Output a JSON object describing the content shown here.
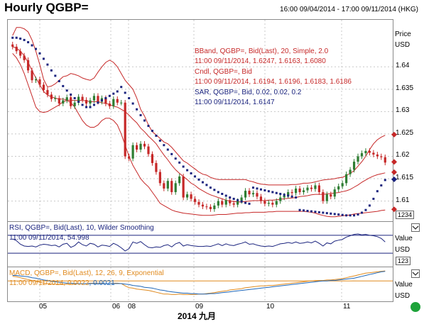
{
  "header": {
    "title": "Hourly QGBP=",
    "date_range": "16:00 09/04/2014 - 17:00 09/11/2014 (HKG)"
  },
  "colors": {
    "bband": "#c62828",
    "candle_up": "#2e7d32",
    "candle_down": "#c62828",
    "sar": "#1a237e",
    "rsi": "#1a237e",
    "macd": "#e08a1e",
    "signal": "#1e66b8",
    "grid": "#c8c8c8"
  },
  "main_pane": {
    "axis_title": "Price",
    "axis_unit": "USD",
    "overlays": [
      {
        "line1": "BBand, QGBP=, Bid(Last), 20, Simple, 2.0",
        "line2": "11:00 09/11/2014, 1.6247, 1.6163, 1.6080"
      },
      {
        "line1": "Cndl, QGBP=, Bid",
        "line2": "11:00 09/11/2014, 1.6194, 1.6196, 1.6183, 1.6186"
      },
      {
        "line1": "SAR, QGBP=, Bid, 0.02, 0.02, 0.2",
        "line2": "11:00 09/11/2014, 1.6147"
      }
    ],
    "scale_tag": "1234"
  },
  "rsi_pane": {
    "legend": "RSI, QGBP=, Bid(Last), 10, Wilder Smoothing",
    "value_line": "11:00 09/11/2014, 54.998",
    "axis_title": "Value",
    "axis_unit": "USD",
    "scale_tag": "123"
  },
  "macd_pane": {
    "legend": "MACD, QGBP=, Bid(Last), 12, 26, 9, Exponential",
    "value_date": "11:00 09/11/2014,",
    "macd_value": "0.0022",
    "signal_value": "0.0021",
    "axis_title": "Value",
    "axis_unit": "USD"
  },
  "chart_data": {
    "type": "candlestick",
    "title": "Hourly QGBP=",
    "xlabel": "2014 九月",
    "ylabel": "Price USD",
    "x_ticks": [
      "05",
      "06",
      "08",
      "09",
      "10",
      "11"
    ],
    "y_ticks": [
      1.61,
      1.615,
      1.62,
      1.625,
      1.63,
      1.635,
      1.64
    ],
    "ylim": [
      1.6055,
      1.6505
    ],
    "grid": true,
    "close_series": [
      1.6445,
      1.6435,
      1.6425,
      1.6415,
      1.6392,
      1.637,
      1.6372,
      1.636,
      1.6348,
      1.6338,
      1.6328,
      1.633,
      1.6318,
      1.6325,
      1.6332,
      1.6312,
      1.632,
      1.6333,
      1.6326,
      1.6318,
      1.6325,
      1.6335,
      1.6322,
      1.633,
      1.6318,
      1.6312,
      1.6328,
      1.632,
      1.632,
      1.62,
      1.6195,
      1.6225,
      1.6215,
      1.6228,
      1.6222,
      1.6205,
      1.6185,
      1.6165,
      1.614,
      1.6128,
      1.6145,
      1.612,
      1.614,
      1.6155,
      1.6108,
      1.6115,
      1.6105,
      1.6098,
      1.6092,
      1.6088,
      1.6087,
      1.6082,
      1.609,
      1.61,
      1.6092,
      1.6102,
      1.6095,
      1.6092,
      1.61,
      1.6108,
      1.6123,
      1.6115,
      1.6118,
      1.611,
      1.61,
      1.6094,
      1.6096,
      1.6092,
      1.61,
      1.6108,
      1.6112,
      1.612,
      1.6118,
      1.6128,
      1.612,
      1.6124,
      1.613,
      1.6127,
      1.6135,
      1.612,
      1.61,
      1.6115,
      1.611,
      1.6126,
      1.6133,
      1.614,
      1.616,
      1.617,
      1.6188,
      1.62,
      1.6207,
      1.6212,
      1.6208,
      1.6204,
      1.62,
      1.6198,
      1.6186
    ],
    "bband_upper": [
      1.647,
      1.6488,
      1.6488,
      1.6485,
      1.6478,
      1.646,
      1.6435,
      1.6405,
      1.6372,
      1.6355,
      1.6357,
      1.6362,
      1.637,
      1.6378,
      1.638,
      1.6385,
      1.6383,
      1.638,
      1.6375,
      1.6372,
      1.637,
      1.6375,
      1.6388,
      1.64,
      1.641,
      1.6415,
      1.641,
      1.64,
      1.6385,
      1.637,
      1.636,
      1.635,
      1.633,
      1.6305,
      1.629,
      1.627,
      1.6255,
      1.6248,
      1.624,
      1.6232,
      1.6228,
      1.622,
      1.621,
      1.62,
      1.619,
      1.6185,
      1.6178,
      1.6172,
      1.6165,
      1.616,
      1.6158,
      1.6153,
      1.615,
      1.6148,
      1.6148,
      1.6148,
      1.6148,
      1.6148,
      1.6148,
      1.6148,
      1.6148,
      1.6145,
      1.6143,
      1.614,
      1.6138,
      1.6137,
      1.6136,
      1.6136,
      1.6136,
      1.6136,
      1.6136,
      1.6136,
      1.6137,
      1.6137,
      1.6138,
      1.614,
      1.614,
      1.6141,
      1.6143,
      1.6145,
      1.6147,
      1.6148,
      1.6149,
      1.615,
      1.6152,
      1.6153,
      1.6157,
      1.6162,
      1.6168,
      1.6178,
      1.6188,
      1.62,
      1.6215,
      1.6228,
      1.6237,
      1.6243,
      1.6247
    ],
    "bband_middle": [
      1.6445,
      1.6442,
      1.6435,
      1.6425,
      1.641,
      1.6392,
      1.6375,
      1.636,
      1.6345,
      1.6337,
      1.6333,
      1.633,
      1.6328,
      1.6328,
      1.6326,
      1.6325,
      1.6325,
      1.6325,
      1.6325,
      1.6324,
      1.6322,
      1.6322,
      1.6322,
      1.632,
      1.6318,
      1.6316,
      1.6312,
      1.631,
      1.6305,
      1.63,
      1.6292,
      1.6283,
      1.6275,
      1.6263,
      1.6255,
      1.6245,
      1.6237,
      1.6228,
      1.6215,
      1.6203,
      1.6192,
      1.618,
      1.617,
      1.6162,
      1.6155,
      1.6148,
      1.614,
      1.6135,
      1.6128,
      1.6123,
      1.6118,
      1.6114,
      1.6111,
      1.6108,
      1.6105,
      1.6102,
      1.61,
      1.6099,
      1.6098,
      1.6098,
      1.6099,
      1.61,
      1.6101,
      1.6101,
      1.6101,
      1.6101,
      1.6102,
      1.6102,
      1.6103,
      1.6104,
      1.6105,
      1.6106,
      1.6107,
      1.6108,
      1.611,
      1.6111,
      1.6112,
      1.6114,
      1.6115,
      1.6115,
      1.6115,
      1.6116,
      1.6117,
      1.6118,
      1.6119,
      1.6121,
      1.6123,
      1.6126,
      1.6131,
      1.6136,
      1.6142,
      1.6147,
      1.6152,
      1.6156,
      1.6159,
      1.6161,
      1.6163
    ],
    "bband_lower": [
      1.643,
      1.642,
      1.6405,
      1.6385,
      1.636,
      1.6335,
      1.631,
      1.63,
      1.6298,
      1.63,
      1.6305,
      1.631,
      1.6315,
      1.6322,
      1.6325,
      1.632,
      1.631,
      1.6295,
      1.628,
      1.627,
      1.6265,
      1.6265,
      1.627,
      1.628,
      1.6285,
      1.6285,
      1.628,
      1.627,
      1.625,
      1.6225,
      1.62,
      1.618,
      1.6165,
      1.615,
      1.614,
      1.6132,
      1.612,
      1.6108,
      1.6095,
      1.609,
      1.6085,
      1.608,
      1.6077,
      1.6075,
      1.6073,
      1.6072,
      1.6071,
      1.607,
      1.6069,
      1.6068,
      1.6068,
      1.6068,
      1.6069,
      1.607,
      1.607,
      1.607,
      1.6071,
      1.6072,
      1.6073,
      1.6073,
      1.6074,
      1.6074,
      1.6075,
      1.6075,
      1.6075,
      1.6075,
      1.6076,
      1.6076,
      1.6077,
      1.6077,
      1.6077,
      1.6077,
      1.6077,
      1.6077,
      1.6077,
      1.6077,
      1.6076,
      1.6075,
      1.6073,
      1.607,
      1.6068,
      1.6066,
      1.6065,
      1.6065,
      1.6066,
      1.6067,
      1.6068,
      1.6069,
      1.6071,
      1.6072,
      1.6073,
      1.6074,
      1.6075,
      1.6076,
      1.6077,
      1.6079,
      1.608
    ],
    "sar_series": [
      1.6465,
      1.6465,
      1.6463,
      1.646,
      1.6455,
      1.6448,
      1.644,
      1.643,
      1.6418,
      1.6405,
      1.6392,
      1.638,
      1.6368,
      1.6357,
      1.6347,
      1.6338,
      1.633,
      1.6322,
      1.6315,
      1.631,
      1.631,
      1.6315,
      1.632,
      1.6325,
      1.633,
      1.6335,
      1.634,
      1.6345,
      1.6355,
      1.6342,
      1.633,
      1.6318,
      1.6305,
      1.6292,
      1.628,
      1.6268,
      1.6257,
      1.6246,
      1.6235,
      1.6225,
      1.6215,
      1.6205,
      1.6195,
      1.6186,
      1.6177,
      1.6169,
      1.6162,
      1.6155,
      1.6148,
      1.6142,
      1.6136,
      1.613,
      1.6125,
      1.612,
      1.6116,
      1.6112,
      1.6108,
      1.6105,
      1.6102,
      1.6099,
      1.6096,
      1.6094,
      1.613,
      1.6128,
      1.6126,
      1.6124,
      1.6122,
      1.612,
      1.6118,
      1.6116,
      1.6114,
      1.6112,
      1.611,
      1.6108,
      1.608,
      1.6079,
      1.6078,
      1.6077,
      1.6076,
      1.6075,
      1.6074,
      1.6073,
      1.6072,
      1.6071,
      1.607,
      1.6069,
      1.6068,
      1.6068,
      1.6068,
      1.607,
      1.6074,
      1.608,
      1.609,
      1.6105,
      1.6122,
      1.6135,
      1.6147
    ],
    "rsi_series": [
      62,
      58,
      50,
      46,
      45,
      46,
      44,
      48,
      50,
      49,
      47,
      48,
      44,
      50,
      52,
      43,
      47,
      55,
      49,
      46,
      52,
      50,
      44,
      48,
      47,
      45,
      52,
      48,
      42,
      35,
      40,
      55,
      52,
      56,
      49,
      43,
      42,
      44,
      43,
      47,
      49,
      44,
      51,
      54,
      46,
      49,
      47,
      46,
      45,
      45,
      46,
      45,
      48,
      51,
      47,
      51,
      48,
      47,
      50,
      52,
      55,
      50,
      51,
      48,
      46,
      45,
      46,
      45,
      48,
      51,
      52,
      54,
      52,
      55,
      52,
      53,
      55,
      53,
      57,
      52,
      46,
      53,
      51,
      57,
      59,
      61,
      66,
      69,
      72,
      73,
      71,
      72,
      70,
      69,
      67,
      63,
      55
    ],
    "rsi_ylim": [
      0,
      100
    ],
    "rsi_upper_level": 70,
    "rsi_lower_level": 30,
    "macd_series": [
      0.001,
      0.0009,
      0.0007,
      0.0005,
      0.0003,
      0.0001,
      -0.0001,
      -0.0003,
      -0.0005,
      -0.0006,
      -0.0007,
      -0.0007,
      -0.0008,
      -0.0008,
      -0.0007,
      -0.0008,
      -0.0007,
      -0.0006,
      -0.0006,
      -0.0006,
      -0.0005,
      -0.0005,
      -0.0005,
      -0.0005,
      -0.0006,
      -0.0006,
      -0.0005,
      -0.0005,
      -0.0006,
      -0.0011,
      -0.0015,
      -0.0016,
      -0.0018,
      -0.0019,
      -0.002,
      -0.0021,
      -0.0023,
      -0.0025,
      -0.0027,
      -0.0029,
      -0.0029,
      -0.003,
      -0.003,
      -0.0029,
      -0.003,
      -0.003,
      -0.003,
      -0.003,
      -0.0029,
      -0.0029,
      -0.0028,
      -0.0027,
      -0.0026,
      -0.0024,
      -0.0023,
      -0.0022,
      -0.002,
      -0.0019,
      -0.0018,
      -0.0017,
      -0.0015,
      -0.0014,
      -0.0013,
      -0.0012,
      -0.0011,
      -0.0011,
      -0.001,
      -0.001,
      -0.0009,
      -0.0008,
      -0.0007,
      -0.0006,
      -0.0005,
      -0.0004,
      -0.0003,
      -0.0002,
      -0.0001,
      0.0,
      0.0001,
      0.0001,
      0.0001,
      0.0002,
      0.0002,
      0.0003,
      0.0004,
      0.0005,
      0.0007,
      0.0009,
      0.0011,
      0.0013,
      0.0015,
      0.0017,
      0.0018,
      0.0019,
      0.002,
      0.0021,
      0.0022
    ],
    "signal_series": [
      0.0012,
      0.0012,
      0.0011,
      0.001,
      0.0009,
      0.0007,
      0.0006,
      0.0004,
      0.0002,
      0.0001,
      -0.0001,
      -0.0002,
      -0.0003,
      -0.0004,
      -0.0005,
      -0.0005,
      -0.0006,
      -0.0006,
      -0.0006,
      -0.0006,
      -0.0006,
      -0.0006,
      -0.0006,
      -0.0006,
      -0.0006,
      -0.0006,
      -0.0006,
      -0.0006,
      -0.0006,
      -0.0007,
      -0.0008,
      -0.001,
      -0.0011,
      -0.0012,
      -0.0014,
      -0.0015,
      -0.0016,
      -0.0018,
      -0.002,
      -0.0021,
      -0.0023,
      -0.0024,
      -0.0025,
      -0.0026,
      -0.0027,
      -0.0027,
      -0.0028,
      -0.0028,
      -0.0029,
      -0.0029,
      -0.0029,
      -0.0028,
      -0.0028,
      -0.0027,
      -0.0026,
      -0.0025,
      -0.0024,
      -0.0023,
      -0.0022,
      -0.0021,
      -0.002,
      -0.0019,
      -0.0018,
      -0.0017,
      -0.0016,
      -0.0015,
      -0.0014,
      -0.0013,
      -0.0012,
      -0.0011,
      -0.001,
      -0.0009,
      -0.0008,
      -0.0007,
      -0.0006,
      -0.0005,
      -0.0004,
      -0.0003,
      -0.0002,
      -0.0001,
      0.0,
      0.0,
      0.0001,
      0.0001,
      0.0002,
      0.0003,
      0.0004,
      0.0005,
      0.0006,
      0.0008,
      0.001,
      0.0012,
      0.0014,
      0.0016,
      0.0018,
      0.002,
      0.0021
    ],
    "macd_ylim": [
      -0.0045,
      0.003
    ]
  }
}
